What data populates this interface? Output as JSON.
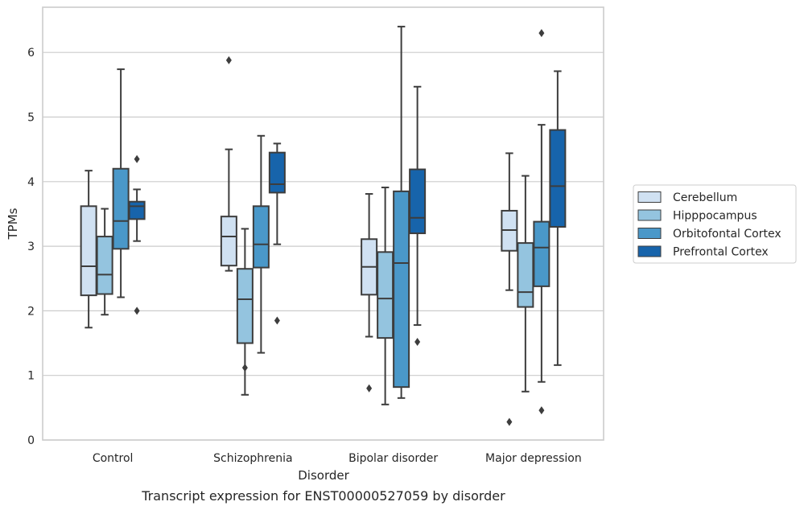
{
  "chart_data": {
    "type": "boxplot",
    "title": "",
    "caption": "Transcript expression for ENST00000527059 by disorder",
    "xlabel": "Disorder",
    "ylabel": "TPMs",
    "ylim": [
      0,
      6.7
    ],
    "yticks": [
      "0",
      "1",
      "2",
      "3",
      "4",
      "5",
      "6"
    ],
    "grid": "horizontal",
    "legend_position": "right",
    "categories": [
      "Control",
      "Schizophrenia",
      "Bipolar disorder",
      "Major depression"
    ],
    "series": [
      {
        "name": "Cerebellum",
        "color": "#d0e1f2",
        "boxes": [
          {
            "whisker_low": 1.74,
            "q1": 2.24,
            "median": 2.69,
            "q3": 3.62,
            "whisker_high": 4.17,
            "outliers": []
          },
          {
            "whisker_low": 2.62,
            "q1": 2.7,
            "median": 3.15,
            "q3": 3.46,
            "whisker_high": 4.5,
            "outliers": [
              5.88
            ]
          },
          {
            "whisker_low": 1.6,
            "q1": 2.25,
            "median": 2.68,
            "q3": 3.11,
            "whisker_high": 3.81,
            "outliers": [
              0.8
            ]
          },
          {
            "whisker_low": 2.32,
            "q1": 2.93,
            "median": 3.25,
            "q3": 3.55,
            "whisker_high": 4.44,
            "outliers": [
              0.28
            ]
          }
        ]
      },
      {
        "name": "Hipppocampus",
        "color": "#94c4df",
        "boxes": [
          {
            "whisker_low": 1.94,
            "q1": 2.26,
            "median": 2.56,
            "q3": 3.15,
            "whisker_high": 3.58,
            "outliers": []
          },
          {
            "whisker_low": 0.7,
            "q1": 1.5,
            "median": 2.18,
            "q3": 2.65,
            "whisker_high": 3.27,
            "outliers": [
              1.12
            ]
          },
          {
            "whisker_low": 0.55,
            "q1": 1.58,
            "median": 2.19,
            "q3": 2.91,
            "whisker_high": 3.91,
            "outliers": []
          },
          {
            "whisker_low": 0.75,
            "q1": 2.06,
            "median": 2.29,
            "q3": 3.05,
            "whisker_high": 4.09,
            "outliers": []
          }
        ]
      },
      {
        "name": "Orbitofontal Cortex",
        "color": "#4a98c9",
        "boxes": [
          {
            "whisker_low": 2.21,
            "q1": 2.96,
            "median": 3.39,
            "q3": 4.2,
            "whisker_high": 5.74,
            "outliers": []
          },
          {
            "whisker_low": 1.35,
            "q1": 2.67,
            "median": 3.03,
            "q3": 3.62,
            "whisker_high": 4.71,
            "outliers": []
          },
          {
            "whisker_low": 0.65,
            "q1": 0.82,
            "median": 2.74,
            "q3": 3.85,
            "whisker_high": 6.4,
            "outliers": []
          },
          {
            "whisker_low": 0.9,
            "q1": 2.38,
            "median": 2.98,
            "q3": 3.38,
            "whisker_high": 4.88,
            "outliers": [
              0.46,
              6.3
            ]
          }
        ]
      },
      {
        "name": "Prefrontal Cortex",
        "color": "#1764ab",
        "boxes": [
          {
            "whisker_low": 3.08,
            "q1": 3.42,
            "median": 3.62,
            "q3": 3.69,
            "whisker_high": 3.88,
            "outliers": [
              2.0,
              4.35
            ]
          },
          {
            "whisker_low": 3.03,
            "q1": 3.83,
            "median": 3.96,
            "q3": 4.45,
            "whisker_high": 4.59,
            "outliers": [
              1.85
            ]
          },
          {
            "whisker_low": 1.78,
            "q1": 3.2,
            "median": 3.44,
            "q3": 4.19,
            "whisker_high": 5.47,
            "outliers": [
              1.52
            ]
          },
          {
            "whisker_low": 1.16,
            "q1": 3.3,
            "median": 3.93,
            "q3": 4.8,
            "whisker_high": 5.71,
            "outliers": []
          }
        ]
      }
    ]
  }
}
